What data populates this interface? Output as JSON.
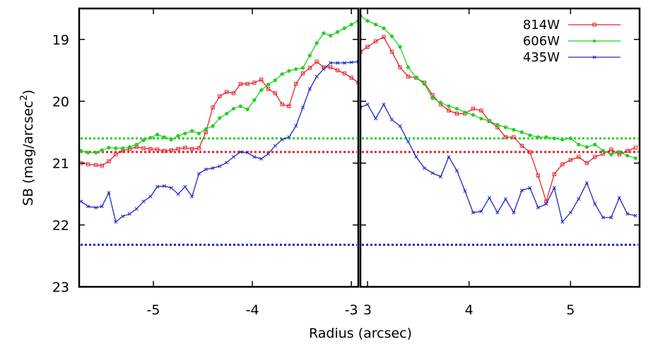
{
  "chart_data": {
    "type": "line",
    "ylabel": "SB (mag/arcsec",
    "ylabel_sup": "2",
    "ylabel_close": ")",
    "xlabel": "Radius (arcsec)",
    "y_reversed": true,
    "ylim": [
      18.5,
      23
    ],
    "yticks": [
      "19",
      "20",
      "21",
      "22",
      "23"
    ],
    "ytick_values": [
      19,
      20,
      21,
      22,
      23
    ],
    "legend": {
      "placement": "top-right",
      "entries": [
        {
          "label": "814W",
          "color": "#e8202a"
        },
        {
          "label": "606W",
          "color": "#22d022"
        },
        {
          "label": "435W",
          "color": "#1a28c8"
        }
      ]
    },
    "panels": [
      {
        "xlim": [
          -5.75,
          -2.93
        ],
        "xticks": [
          "-5",
          "-4",
          "-3"
        ],
        "xtick_values": [
          -5,
          -4,
          -3
        ],
        "series": [
          {
            "name": "814W",
            "color": "#e8202a",
            "marker": "square",
            "x": [
              -5.73,
              -5.66,
              -5.58,
              -5.52,
              -5.45,
              -5.38,
              -5.31,
              -5.24,
              -5.17,
              -5.1,
              -5.03,
              -4.96,
              -4.89,
              -4.82,
              -4.75,
              -4.68,
              -4.61,
              -4.54,
              -4.47,
              -4.4,
              -4.33,
              -4.26,
              -4.19,
              -4.12,
              -4.05,
              -3.98,
              -3.91,
              -3.84,
              -3.77,
              -3.7,
              -3.63,
              -3.56,
              -3.49,
              -3.42,
              -3.35,
              -3.28,
              -3.21,
              -3.14,
              -3.07,
              -3.0,
              -2.93
            ],
            "y": [
              21.0,
              21.02,
              21.03,
              21.04,
              20.97,
              20.86,
              20.8,
              20.77,
              20.74,
              20.76,
              20.77,
              20.78,
              20.8,
              20.79,
              20.77,
              20.75,
              20.77,
              20.76,
              20.5,
              20.1,
              19.92,
              19.85,
              19.87,
              19.72,
              19.72,
              19.7,
              19.65,
              19.8,
              19.87,
              20.05,
              20.08,
              19.72,
              19.55,
              19.46,
              19.36,
              19.45,
              19.45,
              19.5,
              19.55,
              19.62,
              19.7
            ]
          },
          {
            "name": "606W",
            "color": "#22d022",
            "marker": "star",
            "x": [
              -5.73,
              -5.66,
              -5.58,
              -5.52,
              -5.45,
              -5.38,
              -5.31,
              -5.24,
              -5.17,
              -5.1,
              -5.03,
              -4.96,
              -4.89,
              -4.82,
              -4.75,
              -4.68,
              -4.61,
              -4.54,
              -4.47,
              -4.4,
              -4.33,
              -4.26,
              -4.19,
              -4.12,
              -4.05,
              -3.98,
              -3.91,
              -3.84,
              -3.77,
              -3.7,
              -3.63,
              -3.56,
              -3.49,
              -3.42,
              -3.35,
              -3.28,
              -3.21,
              -3.14,
              -3.07,
              -3.0,
              -2.93
            ],
            "y": [
              20.8,
              20.83,
              20.83,
              20.79,
              20.75,
              20.76,
              20.76,
              20.74,
              20.7,
              20.63,
              20.59,
              20.54,
              20.58,
              20.62,
              20.56,
              20.52,
              20.48,
              20.52,
              20.45,
              20.4,
              20.27,
              20.2,
              20.12,
              20.08,
              20.13,
              19.98,
              19.82,
              19.73,
              19.66,
              19.56,
              19.51,
              19.48,
              19.46,
              19.26,
              19.06,
              18.9,
              18.94,
              18.88,
              18.82,
              18.76,
              18.7
            ]
          },
          {
            "name": "435W",
            "color": "#1a28c8",
            "marker": "cross",
            "x": [
              -5.73,
              -5.66,
              -5.58,
              -5.52,
              -5.45,
              -5.38,
              -5.31,
              -5.24,
              -5.17,
              -5.1,
              -5.03,
              -4.96,
              -4.89,
              -4.82,
              -4.75,
              -4.68,
              -4.61,
              -4.54,
              -4.47,
              -4.4,
              -4.33,
              -4.26,
              -4.19,
              -4.12,
              -4.05,
              -3.98,
              -3.91,
              -3.84,
              -3.77,
              -3.7,
              -3.63,
              -3.56,
              -3.49,
              -3.42,
              -3.35,
              -3.28,
              -3.21,
              -3.14,
              -3.07,
              -3.0,
              -2.93
            ],
            "y": [
              21.62,
              21.7,
              21.72,
              21.7,
              21.48,
              21.95,
              21.86,
              21.82,
              21.74,
              21.62,
              21.54,
              21.38,
              21.37,
              21.4,
              21.5,
              21.38,
              21.54,
              21.17,
              21.1,
              21.08,
              21.05,
              20.99,
              20.9,
              20.82,
              20.83,
              20.9,
              20.93,
              20.85,
              20.72,
              20.62,
              20.58,
              20.4,
              20.1,
              19.8,
              19.6,
              19.48,
              19.38,
              19.38,
              19.38,
              19.37,
              19.36
            ]
          }
        ]
      },
      {
        "xlim": [
          2.93,
          5.68
        ],
        "xticks": [
          "3",
          "4",
          "5"
        ],
        "xtick_values": [
          3,
          4,
          5
        ],
        "series": [
          {
            "name": "814W",
            "color": "#e8202a",
            "marker": "square",
            "x": [
              2.93,
              3.0,
              3.08,
              3.16,
              3.24,
              3.32,
              3.4,
              3.48,
              3.56,
              3.64,
              3.72,
              3.8,
              3.88,
              3.96,
              4.04,
              4.12,
              4.2,
              4.28,
              4.36,
              4.44,
              4.52,
              4.6,
              4.68,
              4.76,
              4.84,
              4.92,
              5.0,
              5.08,
              5.16,
              5.24,
              5.32,
              5.4,
              5.48,
              5.56,
              5.64
            ],
            "y": [
              19.2,
              19.12,
              19.03,
              18.96,
              19.2,
              19.45,
              19.6,
              19.62,
              19.7,
              19.9,
              20.05,
              20.15,
              20.2,
              20.2,
              20.12,
              20.15,
              20.32,
              20.42,
              20.58,
              20.58,
              20.72,
              20.82,
              21.2,
              21.62,
              21.18,
              21.02,
              20.95,
              20.9,
              21.0,
              20.9,
              20.85,
              20.78,
              20.86,
              20.8,
              20.75
            ]
          },
          {
            "name": "606W",
            "color": "#22d022",
            "marker": "star",
            "x": [
              2.93,
              3.0,
              3.08,
              3.16,
              3.24,
              3.32,
              3.4,
              3.48,
              3.56,
              3.64,
              3.72,
              3.8,
              3.88,
              3.96,
              4.04,
              4.12,
              4.2,
              4.28,
              4.36,
              4.44,
              4.52,
              4.6,
              4.68,
              4.76,
              4.84,
              4.92,
              5.0,
              5.08,
              5.16,
              5.24,
              5.32,
              5.4,
              5.48,
              5.56,
              5.64
            ],
            "y": [
              18.62,
              18.7,
              18.76,
              18.82,
              18.95,
              19.12,
              19.45,
              19.62,
              19.72,
              19.95,
              20.02,
              20.08,
              20.12,
              20.18,
              20.22,
              20.28,
              20.32,
              20.38,
              20.42,
              20.46,
              20.5,
              20.55,
              20.58,
              20.58,
              20.6,
              20.62,
              20.6,
              20.7,
              20.74,
              20.7,
              20.8,
              20.86,
              20.82,
              20.88,
              20.92
            ]
          },
          {
            "name": "435W",
            "color": "#1a28c8",
            "marker": "cross",
            "x": [
              2.93,
              3.0,
              3.08,
              3.16,
              3.24,
              3.32,
              3.4,
              3.48,
              3.56,
              3.64,
              3.72,
              3.8,
              3.88,
              3.96,
              4.04,
              4.12,
              4.2,
              4.28,
              4.36,
              4.44,
              4.52,
              4.6,
              4.68,
              4.76,
              4.84,
              4.92,
              5.0,
              5.08,
              5.16,
              5.24,
              5.32,
              5.4,
              5.48,
              5.56,
              5.64
            ],
            "y": [
              20.1,
              20.05,
              20.28,
              20.05,
              20.3,
              20.4,
              20.65,
              20.9,
              21.08,
              21.16,
              21.22,
              20.9,
              21.12,
              21.45,
              21.8,
              21.78,
              21.56,
              21.8,
              21.58,
              21.8,
              21.44,
              21.4,
              21.72,
              21.66,
              21.4,
              21.95,
              21.8,
              21.58,
              21.32,
              21.66,
              21.88,
              21.88,
              21.56,
              21.82,
              21.85
            ]
          }
        ]
      }
    ],
    "reference_lines": [
      {
        "series": "606W",
        "color": "#22d022",
        "y": 20.6
      },
      {
        "series": "814W",
        "color": "#e8202a",
        "y": 20.82
      },
      {
        "series": "435W",
        "color": "#1a28c8",
        "y": 22.32
      }
    ]
  }
}
